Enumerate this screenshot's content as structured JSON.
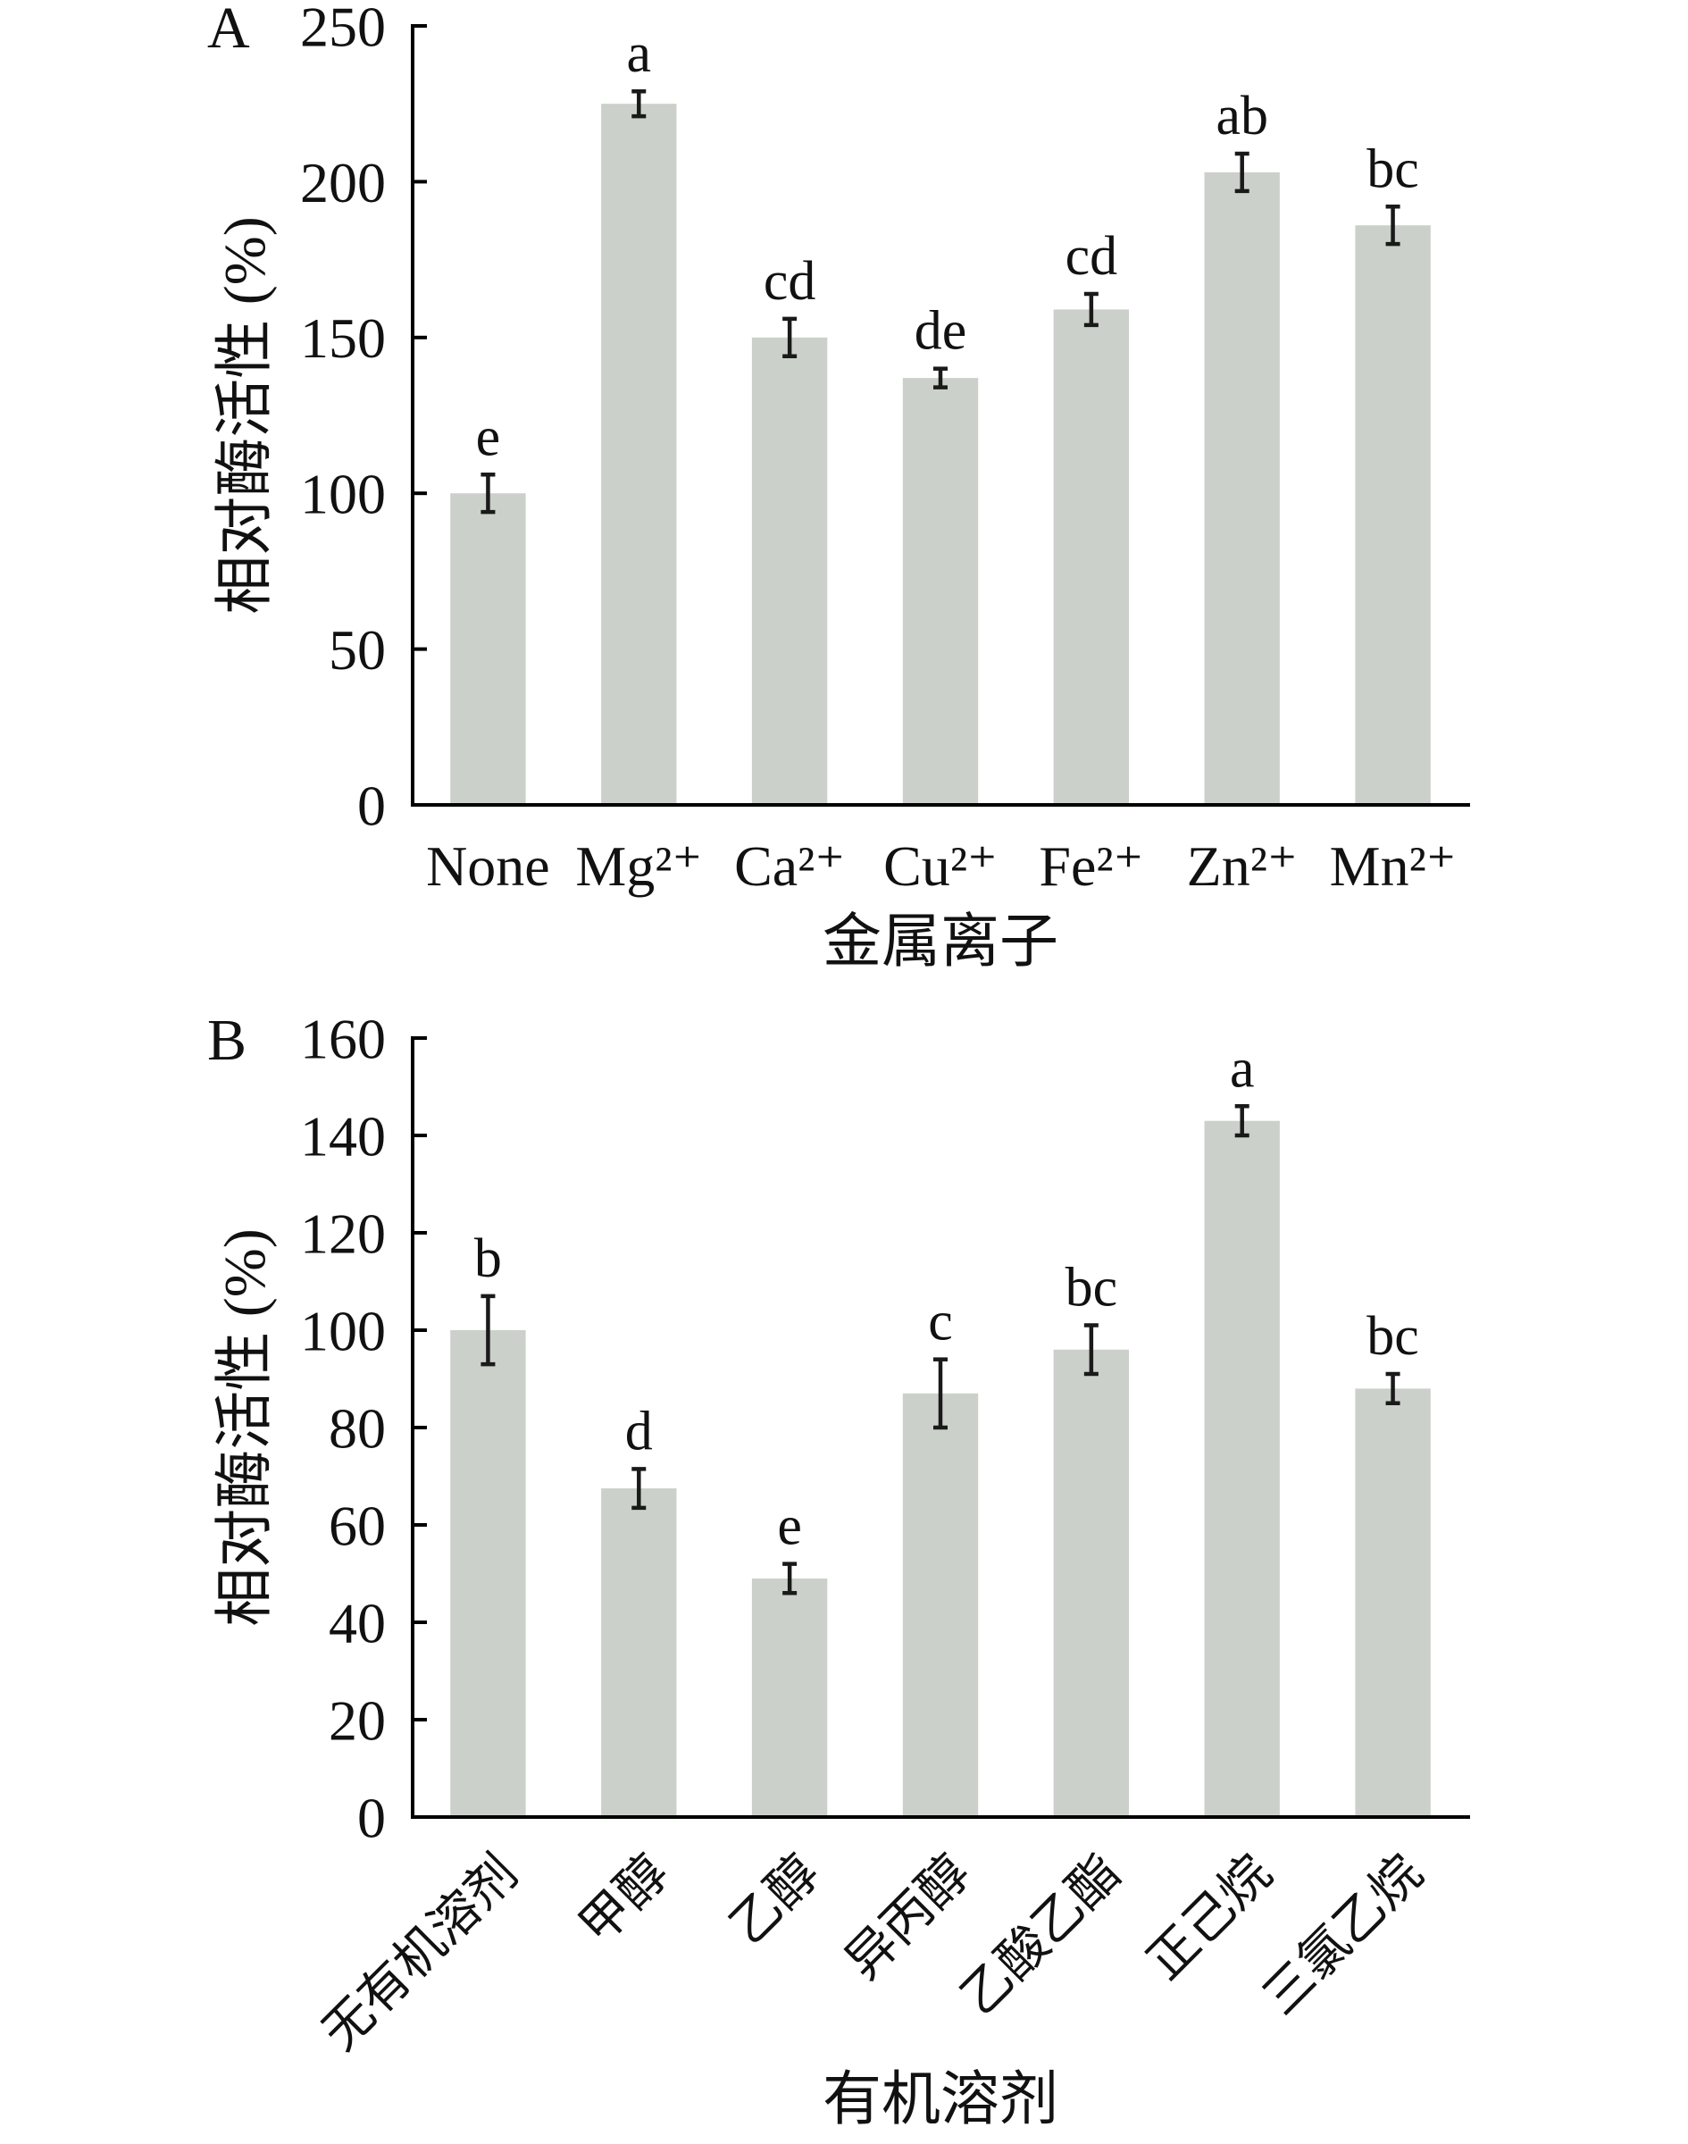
{
  "chart_data": [
    {
      "type": "bar",
      "panel_label": "A",
      "categories": [
        "None",
        "Mg²⁺",
        "Ca²⁺",
        "Cu²⁺",
        "Fe²⁺",
        "Zn²⁺",
        "Mn²⁺"
      ],
      "values": [
        100,
        225,
        150,
        137,
        159,
        203,
        186
      ],
      "errors": [
        6,
        4,
        6,
        3,
        5,
        6,
        6
      ],
      "significance_letters": [
        "e",
        "a",
        "cd",
        "de",
        "cd",
        "ab",
        "bc"
      ],
      "xlabel": "金属离子",
      "ylabel": "相对酶活性 (%)",
      "ylim": [
        0,
        250
      ],
      "yticks": [
        0,
        50,
        100,
        150,
        200,
        250
      ],
      "grid": false,
      "bar_color": "#ccd0ca",
      "error_bar_color": "#1a1a1a",
      "axis_color": "#000000"
    },
    {
      "type": "bar",
      "panel_label": "B",
      "categories": [
        "无有机溶剂",
        "甲醇",
        "乙醇",
        "异丙醇",
        "乙酸乙酯",
        "正己烷",
        "三氯乙烷"
      ],
      "values": [
        100,
        67.5,
        49,
        87,
        96,
        143,
        88
      ],
      "errors": [
        7,
        4,
        3,
        7,
        5,
        3,
        3
      ],
      "significance_letters": [
        "b",
        "d",
        "e",
        "c",
        "bc",
        "a",
        "bc"
      ],
      "xlabel": "有机溶剂",
      "ylabel": "相对酶活性 (%)",
      "ylim": [
        0,
        160
      ],
      "yticks": [
        0,
        20,
        40,
        60,
        80,
        100,
        120,
        140,
        160
      ],
      "grid": false,
      "bar_color": "#ccd0ca",
      "error_bar_color": "#1a1a1a",
      "axis_color": "#000000"
    }
  ]
}
